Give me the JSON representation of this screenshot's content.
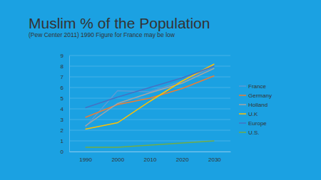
{
  "chart_data": {
    "type": "line",
    "title": "Muslim % of the Population",
    "subtitle": "(Pew Center 2011) 1990 Figure for France may be low",
    "categories": [
      "1990",
      "2000",
      "2010",
      "2020",
      "2030"
    ],
    "series": [
      {
        "name": "France",
        "color": "#5b9bd5",
        "values": [
          2.3,
          5.7,
          5.6,
          6.6,
          8.0
        ]
      },
      {
        "name": "Germany",
        "color": "#ed7d31",
        "values": [
          3.2,
          4.4,
          5.0,
          5.9,
          7.1
        ]
      },
      {
        "name": "Holland",
        "color": "#a5a5a5",
        "values": [
          2.4,
          4.5,
          5.5,
          6.4,
          7.8
        ]
      },
      {
        "name": "U.K",
        "color": "#ffc000",
        "values": [
          2.1,
          2.7,
          4.7,
          6.6,
          8.2
        ]
      },
      {
        "name": "Europe",
        "color": "#4472c4",
        "values": [
          4.1,
          5.1,
          6.0,
          6.9,
          8.0
        ]
      },
      {
        "name": "U.S.",
        "color": "#70ad47",
        "values": [
          0.4,
          0.4,
          0.6,
          0.8,
          1.0
        ]
      }
    ],
    "ylim": [
      0,
      9
    ],
    "yticks": [
      0,
      1,
      2,
      3,
      4,
      5,
      6,
      7,
      8,
      9
    ],
    "grid": true,
    "legend": "right"
  }
}
